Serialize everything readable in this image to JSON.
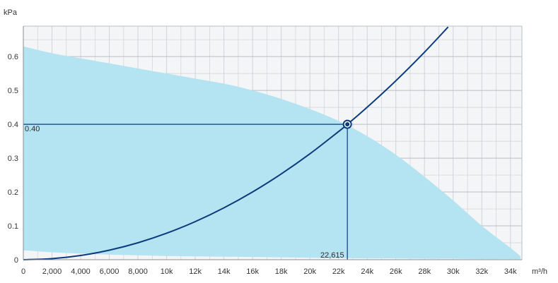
{
  "chart_data": {
    "type": "area",
    "title": "",
    "xlabel": "m³/h",
    "ylabel": "kPa",
    "xlim": [
      0,
      34800
    ],
    "ylim": [
      0,
      0.69
    ],
    "x_ticks": [
      0,
      2000,
      4000,
      6000,
      8000,
      10000,
      12000,
      14000,
      16000,
      18000,
      20000,
      22000,
      24000,
      26000,
      28000,
      30000,
      32000,
      34000
    ],
    "x_tick_labels": [
      "0",
      "2,000",
      "4,000",
      "6,000",
      "8,000",
      "10k",
      "12k",
      "14k",
      "16k",
      "18k",
      "20k",
      "22k",
      "24k",
      "26k",
      "28k",
      "30k",
      "32k",
      "34k"
    ],
    "y_ticks": [
      0,
      0.1,
      0.2,
      0.3,
      0.4,
      0.5,
      0.6
    ],
    "y_tick_labels": [
      "0",
      "0.1",
      "0.2",
      "0.3",
      "0.4",
      "0.5",
      "0.6"
    ],
    "grid": true,
    "colors": {
      "operating_area": "#b4e3f2",
      "system_curve": "#0b3b7a",
      "plot_background": "#f4f5f7",
      "grid": "#d0d3d8"
    },
    "operating_area": {
      "upper": {
        "x": [
          0,
          2000,
          4000,
          6000,
          8000,
          10000,
          12000,
          14000,
          16000,
          18000,
          20000,
          22000,
          24000,
          26000,
          28000,
          30000,
          32000,
          34000,
          34700
        ],
        "y": [
          0.63,
          0.61,
          0.595,
          0.58,
          0.565,
          0.55,
          0.535,
          0.52,
          0.5,
          0.475,
          0.445,
          0.41,
          0.365,
          0.31,
          0.245,
          0.175,
          0.1,
          0.035,
          0.01
        ]
      },
      "lower": {
        "x": [
          0,
          2000,
          4000,
          6000,
          8000,
          10000,
          12000,
          14000,
          16000,
          18000,
          20000,
          22000,
          24000,
          26000,
          28000,
          30000,
          32000,
          34000,
          34700
        ],
        "y": [
          0.028,
          0.022,
          0.018,
          0.015,
          0.013,
          0.011,
          0.01,
          0.009,
          0.008,
          0.007,
          0.006,
          0.005,
          0.004,
          0.004,
          0.003,
          0.003,
          0.002,
          0.002,
          0.002
        ]
      }
    },
    "system_curve": {
      "x": [
        0,
        2000,
        4000,
        6000,
        8000,
        10000,
        12000,
        14000,
        16000,
        18000,
        20000,
        22000,
        22615,
        24000,
        26000,
        28000,
        29650
      ],
      "y": [
        0,
        0.00313,
        0.01251,
        0.02815,
        0.05005,
        0.0782,
        0.11261,
        0.15327,
        0.20019,
        0.25337,
        0.3128,
        0.37848,
        0.4,
        0.45042,
        0.52862,
        0.61307,
        0.6875
      ]
    },
    "operating_point": {
      "x": 22615,
      "y": 0.4
    },
    "annotations": {
      "y_value": "0.40",
      "x_value": "22,615"
    }
  }
}
